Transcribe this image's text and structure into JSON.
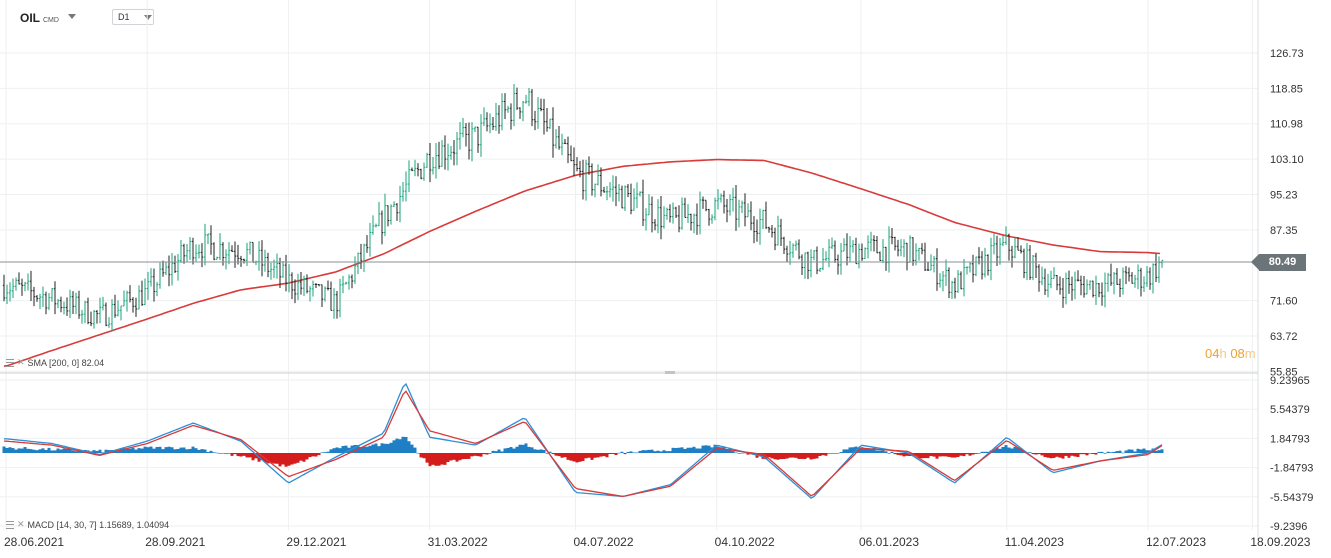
{
  "toolbar": {
    "symbol": "OIL",
    "symbol_suffix": "CMD",
    "timeframe": "D1"
  },
  "price_axis": {
    "labels": [
      "126.73",
      "118.85",
      "110.98",
      "103.10",
      "95.23",
      "87.35",
      "71.60",
      "63.72",
      "55.85"
    ],
    "current_price": "80.49"
  },
  "timer": {
    "hours": "04",
    "hour_unit": "h",
    "minutes": "08",
    "minute_unit": "m"
  },
  "indicators": {
    "sma_label": "SMA [200, 0] 82.04",
    "macd_label": "MACD [14, 30, 7] 1.15689, 1.04094"
  },
  "macd_axis": {
    "labels": [
      "9.23965",
      "5.54379",
      "1.84793",
      "-1.84793",
      "-5.54379",
      "-9.2396"
    ]
  },
  "date_axis": {
    "labels": [
      "28.06.2021",
      "28.09.2021",
      "29.12.2021",
      "31.03.2022",
      "04.07.2022",
      "04.10.2022",
      "06.01.2023",
      "11.04.2023",
      "12.07.2023",
      "18.09.2023"
    ]
  },
  "colors": {
    "up_candle": "#1aa37a",
    "down_candle": "#222222",
    "sma": "#d93a3a",
    "macd_line": "#2d8fd6",
    "signal_line": "#d93a3a",
    "hist_pos": "#1f7fc4",
    "hist_neg": "#d41c1c",
    "price_tag_bg": "#6b7479",
    "timer": "#f0a030"
  },
  "chart_data": [
    {
      "type": "candlestick",
      "title": "OIL",
      "timeframe": "D1",
      "ylim": [
        55.85,
        130.0
      ],
      "x": [
        "28.06.2021",
        "28.07.2021",
        "28.08.2021",
        "28.09.2021",
        "28.10.2021",
        "28.11.2021",
        "29.12.2021",
        "29.01.2022",
        "01.03.2022",
        "31.03.2022",
        "30.04.2022",
        "01.06.2022",
        "04.07.2022",
        "04.08.2022",
        "04.09.2022",
        "04.10.2022",
        "04.11.2022",
        "05.12.2022",
        "06.01.2023",
        "06.02.2023",
        "08.03.2023",
        "11.04.2023",
        "11.05.2023",
        "11.06.2023",
        "12.07.2023",
        "22.07.2023"
      ],
      "close": [
        75.0,
        72.0,
        68.0,
        73.5,
        84.0,
        83.0,
        76.0,
        71.0,
        90.0,
        104.0,
        108.0,
        117.0,
        100.0,
        95.0,
        89.0,
        93.0,
        89.0,
        80.0,
        83.0,
        83.0,
        75.0,
        84.0,
        75.0,
        75.0,
        77.0,
        80.49
      ],
      "sma_200": [
        57.0,
        60.5,
        64.0,
        67.5,
        71.0,
        74.0,
        75.5,
        78.0,
        82.0,
        87.0,
        91.5,
        96.0,
        99.5,
        101.5,
        102.5,
        103.0,
        102.8,
        100.0,
        96.5,
        93.0,
        89.0,
        86.0,
        84.0,
        82.5,
        82.3,
        82.04
      ]
    },
    {
      "type": "line",
      "title": "MACD [14, 30, 7]",
      "ylim": [
        -9.2396,
        9.23965
      ],
      "x": [
        "28.06.2021",
        "28.07.2021",
        "28.08.2021",
        "28.09.2021",
        "28.10.2021",
        "28.11.2021",
        "29.12.2021",
        "29.01.2022",
        "01.03.2022",
        "15.03.2022",
        "31.03.2022",
        "30.04.2022",
        "01.06.2022",
        "04.07.2022",
        "04.08.2022",
        "04.09.2022",
        "04.10.2022",
        "04.11.2022",
        "05.12.2022",
        "06.01.2023",
        "06.02.2023",
        "08.03.2023",
        "11.04.2023",
        "11.05.2023",
        "11.06.2023",
        "12.07.2023",
        "22.07.2023"
      ],
      "series": [
        {
          "name": "MACD",
          "values": [
            1.8,
            1.2,
            -0.2,
            1.5,
            3.8,
            1.5,
            -3.8,
            -0.5,
            2.5,
            9.0,
            2.0,
            1.0,
            4.5,
            -5.0,
            -5.5,
            -4.0,
            1.0,
            -0.5,
            -5.8,
            1.0,
            0.0,
            -3.8,
            2.0,
            -2.5,
            -1.0,
            0.0,
            1.15689
          ]
        },
        {
          "name": "Signal",
          "values": [
            1.5,
            1.0,
            -0.3,
            1.2,
            3.5,
            1.7,
            -3.0,
            -0.8,
            2.0,
            8.0,
            2.8,
            1.2,
            4.0,
            -4.5,
            -5.5,
            -4.2,
            0.6,
            -0.2,
            -5.5,
            0.6,
            0.2,
            -3.5,
            1.6,
            -2.2,
            -1.0,
            -0.2,
            1.04094
          ]
        }
      ]
    }
  ]
}
